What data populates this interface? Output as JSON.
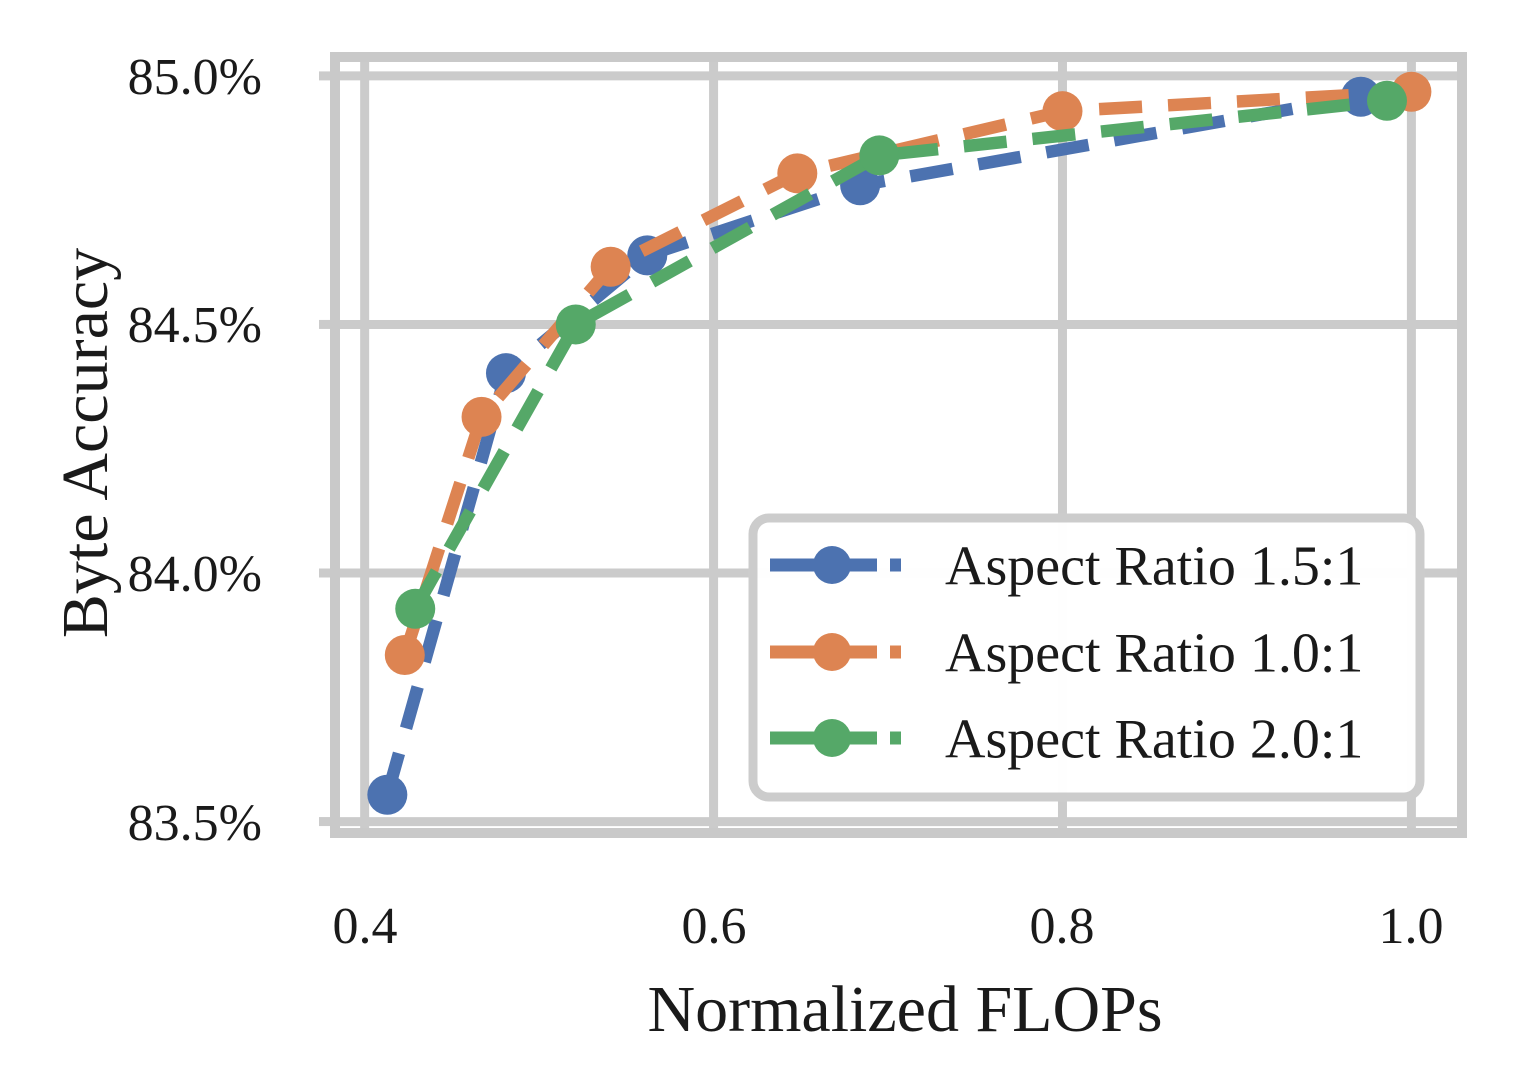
{
  "chart_data": {
    "type": "line",
    "title": "",
    "xlabel": "Normalized FLOPs",
    "ylabel": "Byte Accuracy",
    "xlim": [
      0.383,
      1.029
    ],
    "ylim": [
      83.477,
      85.038
    ],
    "x_ticks": [
      0.4,
      0.6,
      0.8,
      1.0
    ],
    "x_tick_labels": [
      "0.4",
      "0.6",
      "0.8",
      "1.0"
    ],
    "y_ticks": [
      85.0,
      84.5,
      84.0,
      83.5
    ],
    "y_tick_labels": [
      "85.0%",
      "84.5%",
      "84.0%",
      "83.5%"
    ],
    "grid": true,
    "legend_position": "lower-right-inside",
    "line_style": "dashed",
    "marker": "circle",
    "series": [
      {
        "name": "Aspect Ratio 1.5:1",
        "color": "#4C72B0",
        "points": [
          [
            0.413,
            83.554
          ],
          [
            0.481,
            84.402
          ],
          [
            0.562,
            84.639
          ],
          [
            0.684,
            84.78
          ],
          [
            0.971,
            84.958
          ]
        ]
      },
      {
        "name": "Aspect Ratio 1.0:1",
        "color": "#DD8452",
        "points": [
          [
            0.423,
            83.835
          ],
          [
            0.467,
            84.314
          ],
          [
            0.541,
            84.616
          ],
          [
            0.648,
            84.804
          ],
          [
            0.8,
            84.929
          ],
          [
            1.0,
            84.968
          ]
        ]
      },
      {
        "name": "Aspect Ratio 2.0:1",
        "color": "#55A868",
        "points": [
          [
            0.429,
            83.928
          ],
          [
            0.521,
            84.5
          ],
          [
            0.695,
            84.84
          ],
          [
            0.986,
            84.95
          ]
        ]
      }
    ],
    "colors": {
      "grid": "#CBCBCB",
      "spine": "#C9C9C9",
      "text": "#1A1A1A",
      "background": "#FFFFFF",
      "legend_border": "#CCCCCC",
      "legend_background": "#FFFFFF"
    }
  }
}
